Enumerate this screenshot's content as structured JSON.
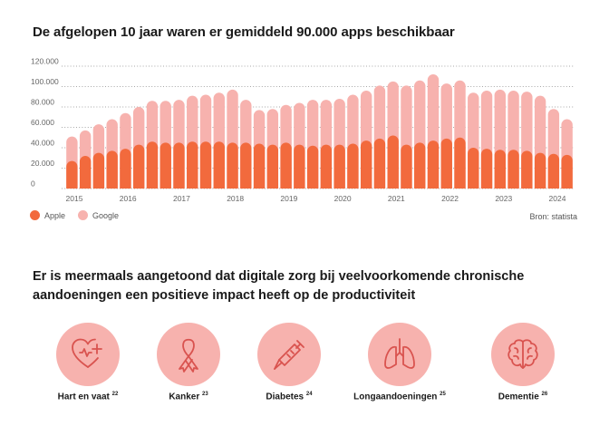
{
  "title": "De afgelopen 10 jaar waren er gemiddeld 90.000 apps beschikbaar",
  "legend": {
    "apple": "Apple",
    "google": "Google"
  },
  "source": "Bron: statista",
  "heading2": "Er is meermaals aangetoond dat digitale zorg bij veelvoorkomende chronische aandoeningen een positieve impact heeft op de productiviteit",
  "conditions": [
    {
      "label": "Hart en vaat",
      "ref": "22",
      "icon": "heart-plus-icon"
    },
    {
      "label": "Kanker",
      "ref": "23",
      "icon": "awareness-ribbon-icon"
    },
    {
      "label": "Diabetes",
      "ref": "24",
      "icon": "syringe-icon"
    },
    {
      "label": "Longaandoeningen",
      "ref": "25",
      "icon": "lungs-icon"
    },
    {
      "label": "Dementie",
      "ref": "26",
      "icon": "brain-icon"
    }
  ],
  "colors": {
    "apple": "#f26a3d",
    "google": "#f7b2ae",
    "circle": "#f7b2ae",
    "icon_stroke": "#d9534f"
  },
  "chart_data": {
    "type": "bar",
    "stacked": false,
    "x_ticks": [
      "2015",
      "2016",
      "2017",
      "2018",
      "2019",
      "2020",
      "2021",
      "2022",
      "2023",
      "2024"
    ],
    "y_ticks": [
      "0",
      "20.000",
      "40.000",
      "60.000",
      "80.000",
      "100.000",
      "120.000"
    ],
    "ylim": [
      0,
      120000
    ],
    "grid": "dotted horizontal",
    "legend_position": "bottom-left",
    "series": [
      {
        "name": "Apple",
        "color": "#f26a3d",
        "values": [
          27000,
          32000,
          35000,
          37000,
          39000,
          43000,
          46000,
          45000,
          45000,
          46000,
          46000,
          46000,
          45000,
          45000,
          44000,
          43000,
          45000,
          43000,
          42000,
          43000,
          43000,
          44000,
          47000,
          49000,
          52000,
          43000,
          45000,
          47000,
          49000,
          50000,
          40000,
          39000,
          38000,
          38000,
          37000,
          35000,
          34000,
          33000
        ]
      },
      {
        "name": "Google",
        "color": "#f7b2ae",
        "values": [
          51000,
          57000,
          63000,
          68000,
          74000,
          80000,
          86000,
          86000,
          87000,
          91000,
          92000,
          94000,
          97000,
          87000,
          77000,
          78000,
          82000,
          84000,
          87000,
          87000,
          88000,
          92000,
          96000,
          101000,
          105000,
          101000,
          106000,
          112000,
          103000,
          106000,
          94000,
          96000,
          97000,
          96000,
          95000,
          91000,
          78000,
          68000
        ]
      }
    ]
  }
}
